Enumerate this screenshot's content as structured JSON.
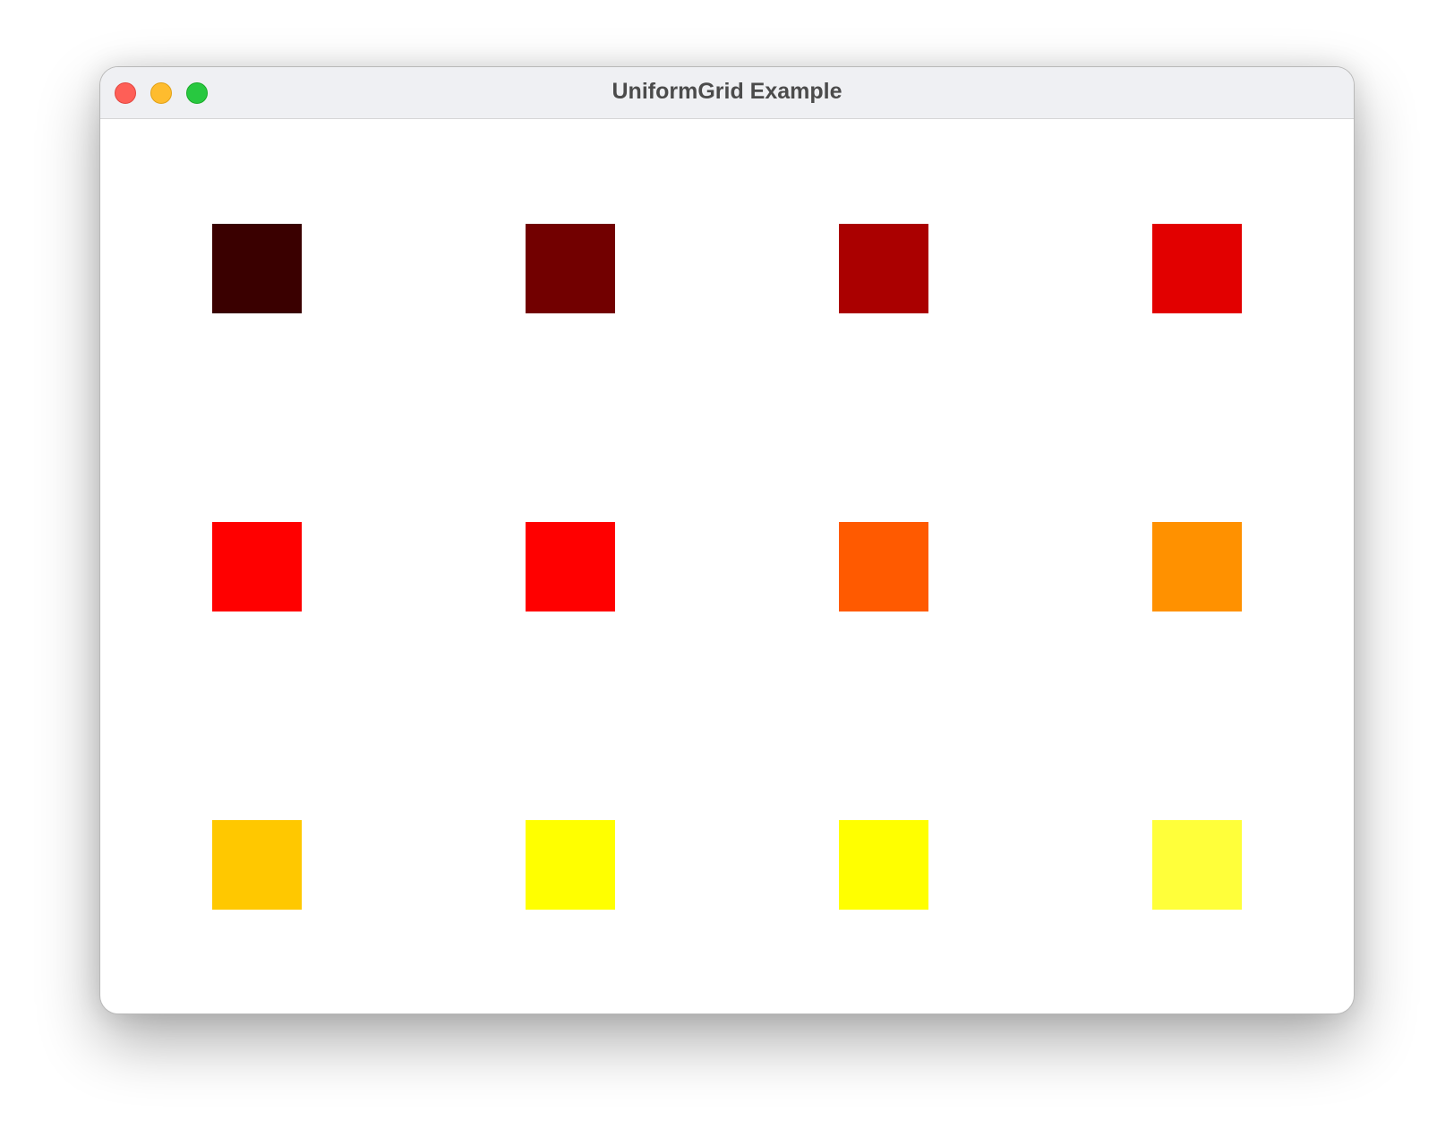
{
  "window": {
    "title": "UniformGrid Example",
    "traffic_lights": {
      "close": "#fe5f57",
      "minimize": "#febc2e",
      "zoom": "#28c840"
    }
  },
  "grid": {
    "columns": 4,
    "rows": 3,
    "cells": [
      {
        "color": "#3a0000"
      },
      {
        "color": "#720000"
      },
      {
        "color": "#aa0000"
      },
      {
        "color": "#e20000"
      },
      {
        "color": "#ff0000"
      },
      {
        "color": "#ff0000"
      },
      {
        "color": "#ff5a00"
      },
      {
        "color": "#ff9100"
      },
      {
        "color": "#ffc800"
      },
      {
        "color": "#ffff00"
      },
      {
        "color": "#ffff00"
      },
      {
        "color": "#ffff3a"
      }
    ]
  }
}
